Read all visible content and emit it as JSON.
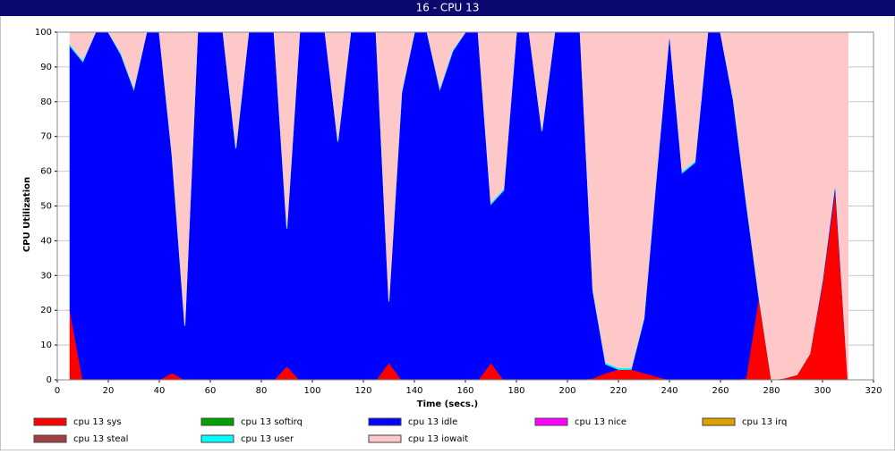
{
  "chart_data": {
    "type": "stacked-area",
    "title": "16 - CPU 13",
    "x_label": "Time (secs.)",
    "y_label": "CPU Utilization",
    "x": [
      5,
      10,
      15,
      20,
      25,
      30,
      35,
      40,
      45,
      50,
      55,
      60,
      65,
      70,
      75,
      80,
      85,
      90,
      95,
      100,
      105,
      110,
      115,
      120,
      125,
      130,
      135,
      140,
      145,
      150,
      155,
      160,
      165,
      170,
      175,
      180,
      185,
      190,
      195,
      200,
      205,
      210,
      215,
      220,
      225,
      230,
      235,
      240,
      245,
      250,
      255,
      260,
      265,
      270,
      275,
      280,
      285,
      290,
      295,
      300,
      305,
      310
    ],
    "xlim": [
      0,
      320
    ],
    "xticks": [
      0,
      20,
      40,
      60,
      80,
      100,
      120,
      140,
      160,
      180,
      200,
      220,
      240,
      260,
      280,
      300,
      320
    ],
    "ylim": [
      0,
      100
    ],
    "yticks": [
      0,
      10,
      20,
      30,
      40,
      50,
      60,
      70,
      80,
      90,
      100
    ],
    "grid": true,
    "series": [
      {
        "name": "cpu 13 sys",
        "color": "#ff0000",
        "values": [
          20,
          0,
          0,
          0,
          0,
          0,
          0,
          0,
          2,
          0,
          0,
          0,
          0,
          0,
          0,
          0,
          0,
          4,
          0,
          0,
          0,
          0,
          0,
          0,
          0,
          5,
          0,
          0,
          0,
          0,
          0,
          0,
          0,
          5,
          0,
          0,
          0,
          0,
          0,
          0,
          0,
          0.5,
          2,
          3,
          3,
          2,
          1,
          0,
          0,
          0,
          0,
          0,
          0,
          0.5,
          24,
          0,
          0.5,
          1.5,
          7.5,
          28,
          55,
          0
        ]
      },
      {
        "name": "cpu 13 softirq",
        "color": "#00a000",
        "values": [
          0,
          0,
          0,
          0,
          0,
          0,
          0,
          0,
          0,
          0,
          0,
          0,
          0,
          0,
          0,
          0,
          0,
          0,
          0,
          0,
          0,
          0,
          0,
          0,
          0,
          0,
          0,
          0,
          0,
          0,
          0,
          0,
          0,
          0,
          0,
          0,
          0,
          0,
          0,
          0,
          0,
          0,
          0,
          0,
          0,
          0,
          0,
          0,
          0,
          0,
          0,
          0,
          0,
          0,
          0,
          0,
          0,
          0,
          0,
          0,
          0,
          0
        ]
      },
      {
        "name": "cpu 13 idle",
        "color": "#0000ff",
        "values": [
          76,
          91.5,
          100,
          100,
          93.5,
          83.5,
          100,
          100,
          62.5,
          15.5,
          100,
          100,
          100,
          66.5,
          100,
          100,
          100,
          39.5,
          100,
          100,
          100,
          68.5,
          100,
          100,
          100,
          17.5,
          82.5,
          100,
          100,
          83.5,
          94.5,
          100,
          100,
          45.5,
          54.5,
          100,
          100,
          71.5,
          100,
          100,
          100,
          25,
          2.5,
          0,
          0,
          15.5,
          58.5,
          100,
          59.5,
          62.5,
          100,
          100,
          80.5,
          51,
          0,
          0,
          0,
          0,
          0,
          0.5,
          1.5,
          0
        ]
      },
      {
        "name": "cpu 13 nice",
        "color": "#ff00ff",
        "values": [
          0,
          0,
          0,
          0,
          0,
          0,
          0,
          0,
          0,
          0,
          0,
          0,
          0,
          0,
          0,
          0,
          0,
          0,
          0,
          0,
          0,
          0,
          0,
          0,
          0,
          0,
          0,
          0,
          0,
          0,
          0,
          0,
          0,
          0,
          0,
          0,
          0,
          0,
          0,
          0,
          0,
          0,
          0,
          0,
          0,
          0,
          0,
          0,
          0,
          0,
          0,
          0,
          0,
          0,
          0,
          0,
          0,
          0,
          0,
          0,
          0,
          0
        ]
      },
      {
        "name": "cpu 13 irq",
        "color": "#e0a000",
        "values": [
          0,
          0,
          0,
          0,
          0,
          0,
          0,
          0,
          0,
          0,
          0,
          0,
          0,
          0,
          0,
          0,
          0,
          0,
          0,
          0,
          0,
          0,
          0,
          0,
          0,
          0,
          0,
          0,
          0,
          0,
          0,
          0,
          0,
          0,
          0,
          0,
          0,
          0,
          0,
          0,
          0,
          0,
          0,
          0,
          0,
          0,
          0,
          0,
          0,
          0,
          0,
          0,
          0,
          0,
          0,
          0,
          0,
          0,
          0,
          0,
          0,
          0
        ]
      },
      {
        "name": "cpu 13 steal",
        "color": "#a04040",
        "values": [
          0,
          0,
          0,
          0,
          0,
          0,
          0,
          0,
          0,
          0,
          0,
          0,
          0,
          0,
          0,
          0,
          0,
          0,
          0,
          0,
          0,
          0,
          0,
          0,
          0,
          0,
          0,
          0,
          0,
          0,
          0,
          0,
          0,
          0,
          0,
          0,
          0,
          0,
          0,
          0,
          0,
          0,
          0,
          0,
          0,
          0,
          0,
          0,
          0,
          0,
          0,
          0,
          0,
          0,
          0,
          0,
          0,
          0,
          0,
          0,
          0,
          0
        ]
      },
      {
        "name": "cpu 13 user",
        "color": "#00ffff",
        "values": [
          0.5,
          0.5,
          0,
          0,
          0.5,
          0.5,
          0,
          0,
          0.5,
          0.5,
          0,
          0,
          0,
          0.5,
          0,
          0,
          0,
          0.5,
          0,
          0,
          0,
          0.5,
          0,
          0,
          0,
          0.5,
          0.5,
          0,
          0,
          0.5,
          0.5,
          0,
          0,
          0.5,
          0.5,
          0,
          0,
          0.5,
          0,
          0,
          0,
          0.5,
          0.5,
          0.5,
          0.5,
          0.5,
          0.5,
          0,
          0.5,
          0.5,
          0,
          0,
          0.5,
          0.5,
          0.5,
          0,
          0,
          0,
          0,
          0.5,
          0.5,
          0
        ]
      },
      {
        "name": "cpu 13 iowait",
        "color": "#ffc8c8",
        "values": [
          3.5,
          8,
          0,
          0,
          6,
          16,
          0,
          0,
          35,
          84,
          0,
          0,
          0,
          33,
          0,
          0,
          0,
          56,
          0,
          0,
          0,
          31,
          0,
          0,
          0,
          77,
          17,
          0,
          0,
          16,
          5,
          0,
          0,
          49,
          45,
          0,
          0,
          28,
          0,
          0,
          0,
          74,
          95,
          96.5,
          96.5,
          82,
          40,
          0,
          40,
          37,
          0,
          0,
          19,
          48,
          75.5,
          100,
          99.5,
          98.5,
          92.5,
          71,
          43,
          100
        ]
      }
    ]
  }
}
